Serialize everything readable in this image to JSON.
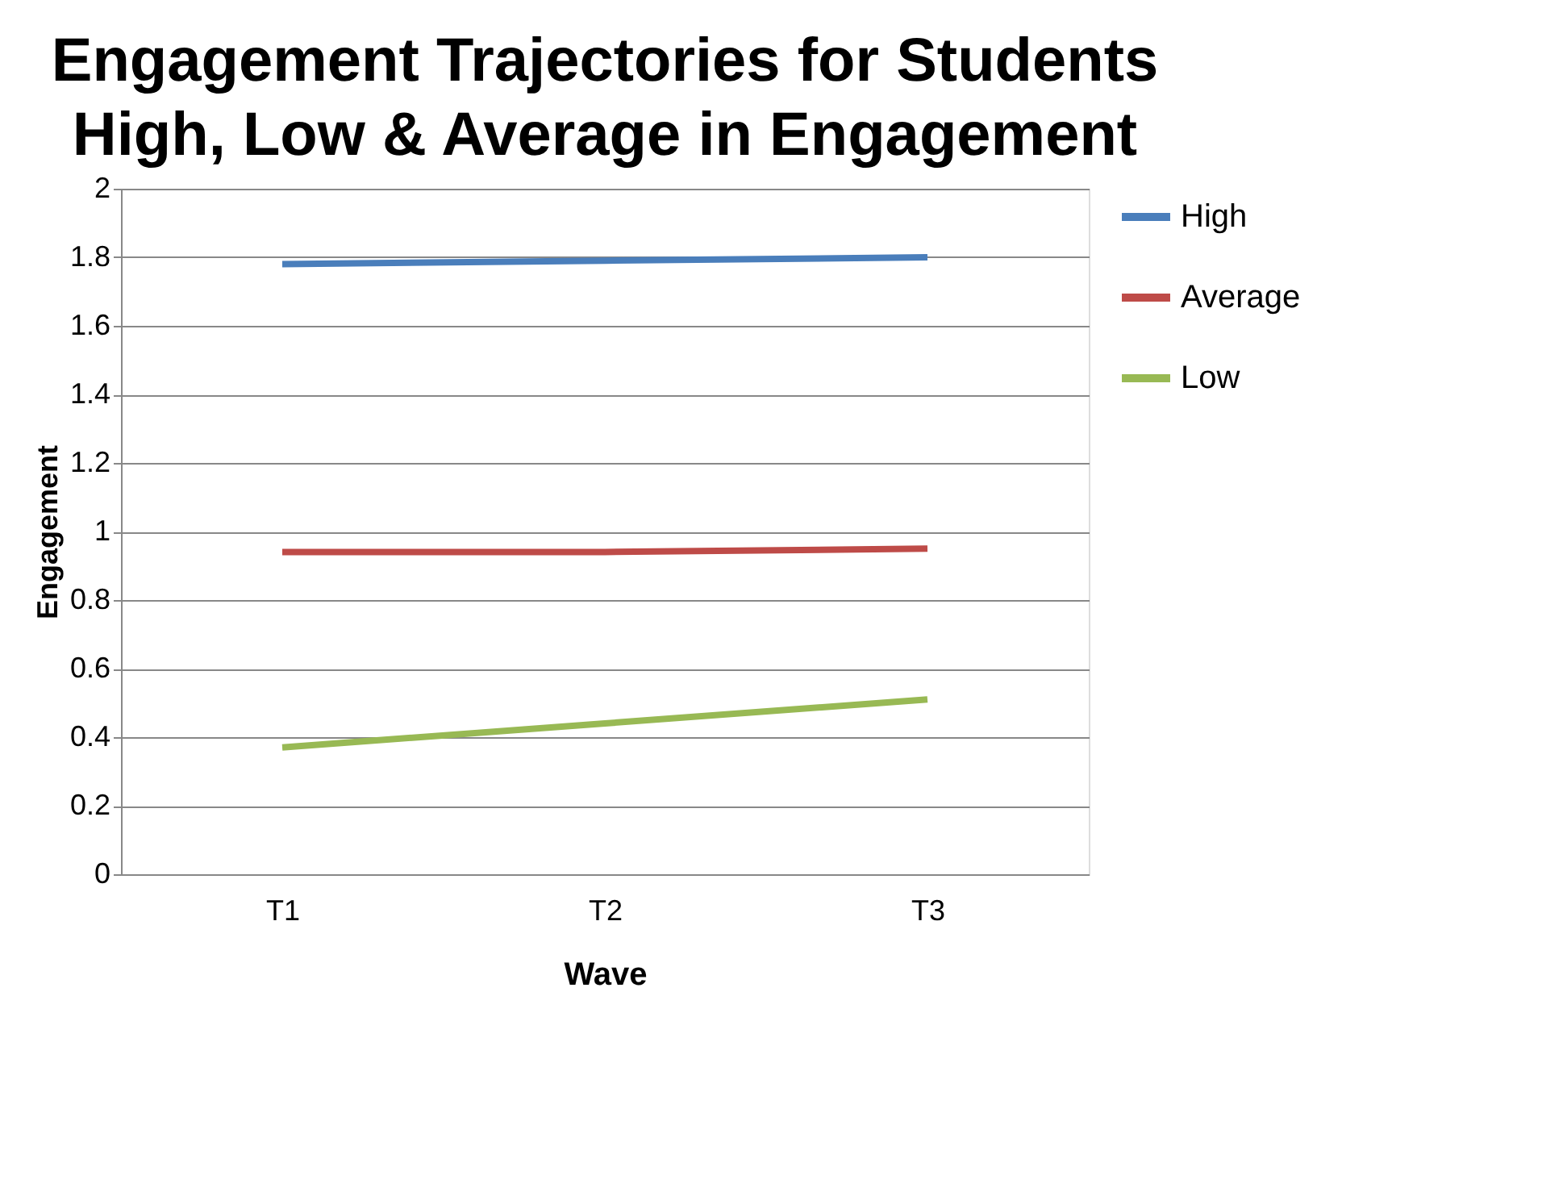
{
  "chart_data": {
    "type": "line",
    "title": "Engagement Trajectories for Students High, Low & Average in Engagement",
    "xlabel": "Wave",
    "ylabel": "Engagement",
    "categories": [
      "T1",
      "T2",
      "T3"
    ],
    "series": [
      {
        "name": "High",
        "color": "#4a7ebb",
        "values": [
          1.78,
          1.79,
          1.8
        ]
      },
      {
        "name": "Average",
        "color": "#be4b48",
        "values": [
          0.94,
          0.94,
          0.95
        ]
      },
      {
        "name": "Low",
        "color": "#98b954",
        "values": [
          0.37,
          0.44,
          0.51
        ]
      }
    ],
    "ylim": [
      0,
      2
    ],
    "yticks": [
      0,
      0.2,
      0.4,
      0.6,
      0.8,
      1,
      1.2,
      1.4,
      1.6,
      1.8,
      2
    ],
    "grid": "y",
    "legend": "right",
    "marker": "none",
    "line_style": "solid"
  }
}
